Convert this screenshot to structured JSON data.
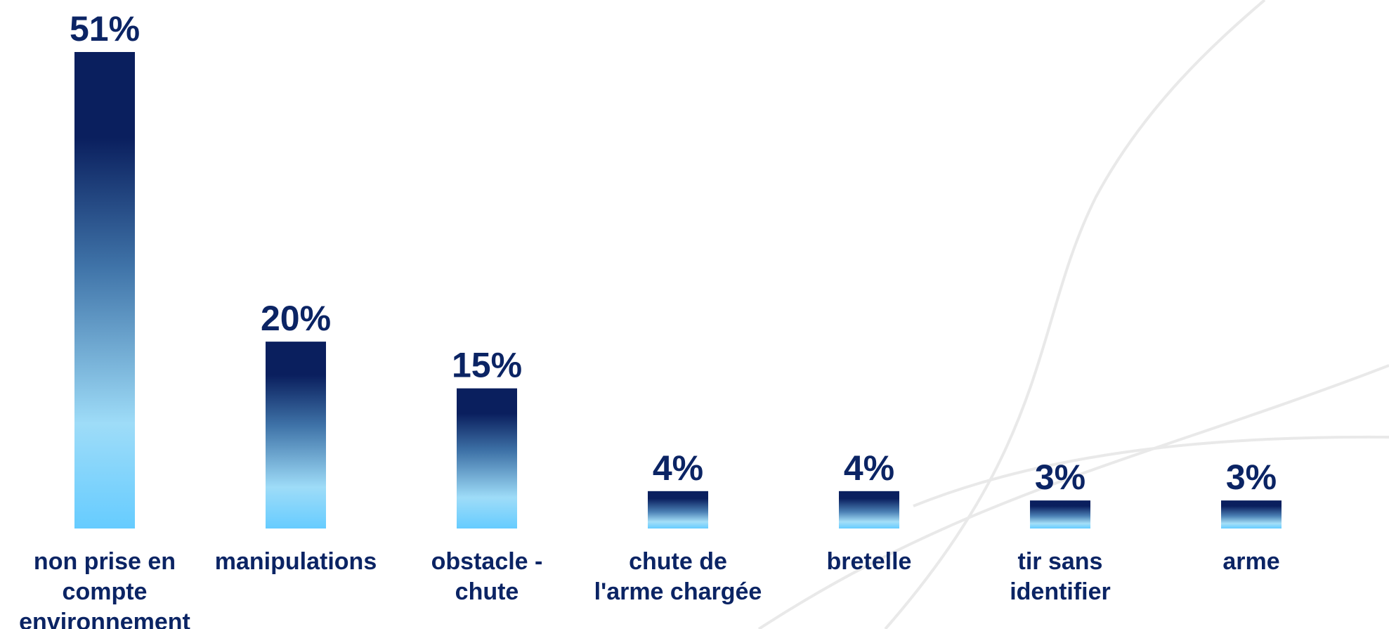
{
  "chart_data": {
    "type": "bar",
    "title": "",
    "xlabel": "",
    "ylabel": "",
    "categories": [
      [
        "non prise en",
        "compte",
        "environnement"
      ],
      [
        "manipulations"
      ],
      [
        "obstacle -",
        "chute"
      ],
      [
        "chute de",
        "l'arme chargée"
      ],
      [
        "bretelle"
      ],
      [
        "tir sans",
        "identifier"
      ],
      [
        "arme"
      ]
    ],
    "values": [
      51,
      20,
      15,
      4,
      4,
      3,
      3
    ],
    "value_labels": [
      "51%",
      "20%",
      "15%",
      "4%",
      "4%",
      "3%",
      "3%"
    ],
    "ylim": [
      0,
      51
    ],
    "grid": false,
    "legend": "none",
    "colors": {
      "bar_top": "#0a1f5e",
      "bar_mid": "#3f73a8",
      "bar_bottom": "#66ccff",
      "text": "#0b2464"
    }
  }
}
